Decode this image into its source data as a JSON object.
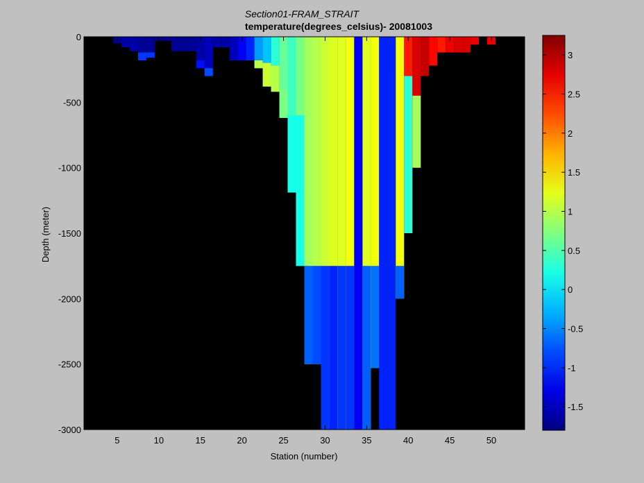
{
  "chart_data": {
    "type": "heatmap",
    "title": "Section01-FRAM_STRAIT",
    "subtitle": "temperature(degrees_celsius)- 20081003",
    "xlabel": "Station (number)",
    "ylabel": "Depth (meter)",
    "xlim": [
      1,
      54
    ],
    "ylim": [
      -3000,
      0
    ],
    "xticks": [
      "5",
      "10",
      "15",
      "20",
      "25",
      "30",
      "35",
      "40",
      "45",
      "50"
    ],
    "yticks": [
      "0",
      "-500",
      "-1000",
      "-1500",
      "-2000",
      "-2500",
      "-3000"
    ],
    "colorbar": {
      "range": [
        -1.8,
        3.25
      ],
      "ticks": [
        "3",
        "2.5",
        "2",
        "1.5",
        "1",
        "0.5",
        "0",
        "-0.5",
        "-1",
        "-1.5"
      ]
    },
    "background_color": "#000000",
    "colormap": "jet",
    "grid": false,
    "stations": [
      {
        "x": 5,
        "columns": [
          {
            "from": 0,
            "to": 50,
            "t": -1.7
          }
        ]
      },
      {
        "x": 6,
        "columns": [
          {
            "from": 0,
            "to": 80,
            "t": -1.6
          }
        ]
      },
      {
        "x": 7,
        "columns": [
          {
            "from": 0,
            "to": 110,
            "t": -1.6
          }
        ]
      },
      {
        "x": 8,
        "columns": [
          {
            "from": 0,
            "to": 180,
            "t": -1.7
          },
          {
            "from": 120,
            "to": 180,
            "t": -0.9
          }
        ]
      },
      {
        "x": 9,
        "columns": [
          {
            "from": 0,
            "to": 160,
            "t": -1.7
          },
          {
            "from": 120,
            "to": 160,
            "t": -0.9
          }
        ]
      },
      {
        "x": 10,
        "columns": [
          {
            "from": 0,
            "to": 30,
            "t": -1.7
          }
        ]
      },
      {
        "x": 11,
        "columns": [
          {
            "from": 0,
            "to": 30,
            "t": -1.7
          }
        ]
      },
      {
        "x": 12,
        "columns": [
          {
            "from": 0,
            "to": 110,
            "t": -1.7
          }
        ]
      },
      {
        "x": 13,
        "columns": [
          {
            "from": 0,
            "to": 110,
            "t": -1.7
          }
        ]
      },
      {
        "x": 14,
        "columns": [
          {
            "from": 0,
            "to": 110,
            "t": -1.7
          }
        ]
      },
      {
        "x": 15,
        "columns": [
          {
            "from": 0,
            "to": 240,
            "t": -1.6
          },
          {
            "from": 180,
            "to": 240,
            "t": -1.1
          }
        ]
      },
      {
        "x": 16,
        "columns": [
          {
            "from": 0,
            "to": 300,
            "t": -1.5
          },
          {
            "from": 240,
            "to": 300,
            "t": -0.8
          }
        ]
      },
      {
        "x": 17,
        "columns": [
          {
            "from": 0,
            "to": 80,
            "t": -1.6
          }
        ]
      },
      {
        "x": 18,
        "columns": [
          {
            "from": 0,
            "to": 80,
            "t": -1.6
          }
        ]
      },
      {
        "x": 19,
        "columns": [
          {
            "from": 0,
            "to": 180,
            "t": -1.5
          }
        ]
      },
      {
        "x": 20,
        "columns": [
          {
            "from": 0,
            "to": 180,
            "t": -1.2
          }
        ]
      },
      {
        "x": 21,
        "columns": [
          {
            "from": 0,
            "to": 180,
            "t": -1.0
          }
        ]
      },
      {
        "x": 22,
        "columns": [
          {
            "from": 0,
            "to": 240,
            "t": -0.4
          },
          {
            "from": 180,
            "to": 240,
            "t": 1.0
          }
        ]
      },
      {
        "x": 23,
        "columns": [
          {
            "from": 0,
            "to": 380,
            "t": -0.2
          },
          {
            "from": 200,
            "to": 380,
            "t": 1.1
          }
        ]
      },
      {
        "x": 24,
        "columns": [
          {
            "from": 0,
            "to": 420,
            "t": 0.3
          },
          {
            "from": 220,
            "to": 420,
            "t": 1.0
          }
        ]
      },
      {
        "x": 25,
        "columns": [
          {
            "from": 0,
            "to": 620,
            "t": 0.6
          },
          {
            "from": 400,
            "to": 620,
            "t": 0.7
          }
        ]
      },
      {
        "x": 26,
        "columns": [
          {
            "from": 0,
            "to": 1190,
            "t": 0.4
          },
          {
            "from": 600,
            "to": 1190,
            "t": 0.2
          }
        ]
      },
      {
        "x": 27,
        "columns": [
          {
            "from": 0,
            "to": 1750,
            "t": 0.7
          },
          {
            "from": 600,
            "to": 1750,
            "t": 0.2
          }
        ]
      },
      {
        "x": 28,
        "columns": [
          {
            "from": 0,
            "to": 2500,
            "t": 0.9
          },
          {
            "from": 1750,
            "to": 2500,
            "t": -0.7
          }
        ]
      },
      {
        "x": 29,
        "columns": [
          {
            "from": 0,
            "to": 2500,
            "t": 1.0
          },
          {
            "from": 1750,
            "to": 2500,
            "t": -0.8
          }
        ]
      },
      {
        "x": 30,
        "columns": [
          {
            "from": 0,
            "to": 3000,
            "t": 1.1
          },
          {
            "from": 1750,
            "to": 3000,
            "t": -0.9
          }
        ]
      },
      {
        "x": 31,
        "columns": [
          {
            "from": 0,
            "to": 3000,
            "t": 1.2
          },
          {
            "from": 1750,
            "to": 3000,
            "t": -1.0
          }
        ]
      },
      {
        "x": 32,
        "columns": [
          {
            "from": 0,
            "to": 3000,
            "t": 1.2
          },
          {
            "from": 1750,
            "to": 3000,
            "t": -0.9
          }
        ]
      },
      {
        "x": 33,
        "columns": [
          {
            "from": 0,
            "to": 3000,
            "t": 1.3
          },
          {
            "from": 1750,
            "to": 3000,
            "t": -0.9
          }
        ]
      },
      {
        "x": 34,
        "columns": [
          {
            "from": 0,
            "to": 3000,
            "t": -1.2
          }
        ]
      },
      {
        "x": 35,
        "columns": [
          {
            "from": 0,
            "to": 3000,
            "t": 1.2
          },
          {
            "from": 1750,
            "to": 3000,
            "t": -0.7
          }
        ]
      },
      {
        "x": 36,
        "columns": [
          {
            "from": 0,
            "to": 2530,
            "t": 1.3
          },
          {
            "from": 1750,
            "to": 2530,
            "t": -0.6
          }
        ]
      },
      {
        "x": 37,
        "columns": [
          {
            "from": 0,
            "to": 3000,
            "t": -1.0
          }
        ]
      },
      {
        "x": 38,
        "columns": [
          {
            "from": 0,
            "to": 3000,
            "t": -1.0
          }
        ]
      },
      {
        "x": 39,
        "columns": [
          {
            "from": 0,
            "to": 2000,
            "t": 1.3
          },
          {
            "from": 1750,
            "to": 2000,
            "t": -0.7
          }
        ]
      },
      {
        "x": 40,
        "columns": [
          {
            "from": 0,
            "to": 1500,
            "t": 2.5
          },
          {
            "from": 300,
            "to": 1500,
            "t": 0.3
          }
        ]
      },
      {
        "x": 41,
        "columns": [
          {
            "from": 0,
            "to": 1000,
            "t": 2.8
          },
          {
            "from": 450,
            "to": 1000,
            "t": 0.9
          }
        ]
      },
      {
        "x": 42,
        "columns": [
          {
            "from": 0,
            "to": 300,
            "t": 2.9
          }
        ]
      },
      {
        "x": 43,
        "columns": [
          {
            "from": 0,
            "to": 220,
            "t": 2.6
          }
        ]
      },
      {
        "x": 44,
        "columns": [
          {
            "from": 0,
            "to": 120,
            "t": 2.5
          }
        ]
      },
      {
        "x": 45,
        "columns": [
          {
            "from": 0,
            "to": 120,
            "t": 2.7
          }
        ]
      },
      {
        "x": 46,
        "columns": [
          {
            "from": 0,
            "to": 120,
            "t": 2.8
          }
        ]
      },
      {
        "x": 47,
        "columns": [
          {
            "from": 0,
            "to": 120,
            "t": 2.8
          }
        ]
      },
      {
        "x": 48,
        "columns": [
          {
            "from": 0,
            "to": 60,
            "t": 2.7
          }
        ]
      },
      {
        "x": 50,
        "columns": [
          {
            "from": 0,
            "to": 60,
            "t": 2.7
          }
        ]
      }
    ]
  }
}
